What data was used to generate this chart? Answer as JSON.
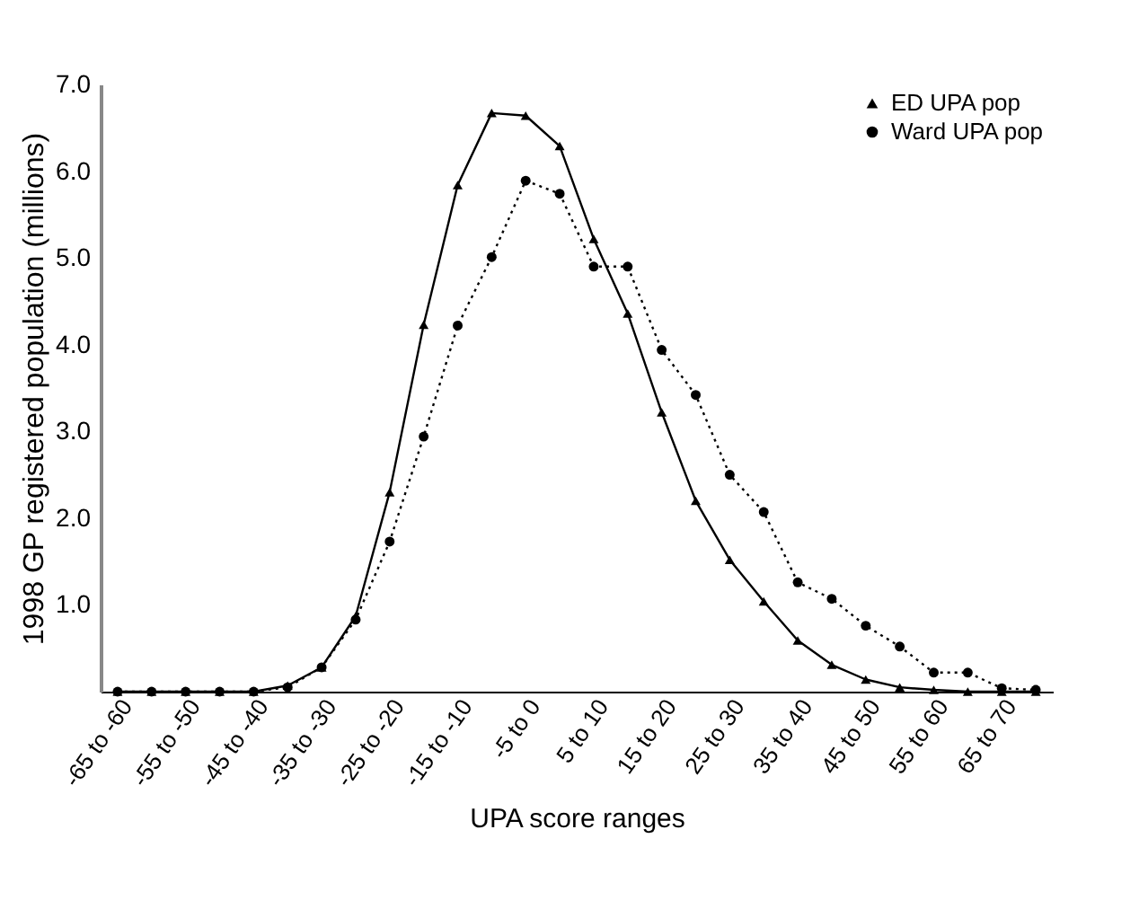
{
  "chart_data": {
    "type": "line",
    "xlabel": "UPA score ranges",
    "ylabel": "1998 GP registered population (millions)",
    "categories": [
      "-65 to -60",
      null,
      "-55 to -50",
      null,
      "-45 to -40",
      null,
      "-35 to -30",
      null,
      "-25 to -20",
      null,
      "-15 to -10",
      null,
      "-5 to 0",
      null,
      "5 to 10",
      null,
      "15 to 20",
      null,
      "25 to 30",
      null,
      "35 to 40",
      null,
      "45 to 50",
      null,
      "55 to 60",
      null,
      "65 to 70",
      null
    ],
    "series": [
      {
        "name": "ED UPA pop",
        "color": "#000000",
        "marker": "triangle",
        "line_style": "solid",
        "values": [
          0,
          0,
          0,
          0,
          0,
          0.07,
          0.28,
          0.87,
          2.3,
          4.23,
          5.84,
          6.67,
          6.64,
          6.29,
          5.22,
          4.36,
          3.22,
          2.2,
          1.52,
          1.04,
          0.59,
          0.31,
          0.14,
          0.05,
          0.02,
          0,
          0,
          0
        ]
      },
      {
        "name": "Ward UPA pop",
        "color": "#000000",
        "marker": "circle",
        "line_style": "dotted",
        "values": [
          0,
          0,
          0,
          0,
          0,
          0.05,
          0.28,
          0.83,
          1.73,
          2.94,
          4.22,
          5.01,
          5.89,
          5.74,
          4.9,
          4.9,
          3.94,
          3.42,
          2.5,
          2.07,
          1.26,
          1.07,
          0.76,
          0.52,
          0.22,
          0.22,
          0.04,
          0.02
        ]
      }
    ],
    "ylim": [
      0,
      7
    ],
    "yticks": [
      {
        "value": 1,
        "label": "1.0"
      },
      {
        "value": 2,
        "label": "2.0"
      },
      {
        "value": 3,
        "label": "3.0"
      },
      {
        "value": 4,
        "label": "4.0"
      },
      {
        "value": 5,
        "label": "5.0"
      },
      {
        "value": 6,
        "label": "6.0"
      },
      {
        "value": 7,
        "label": "7.0"
      }
    ],
    "grid": false,
    "legend": "top right"
  }
}
